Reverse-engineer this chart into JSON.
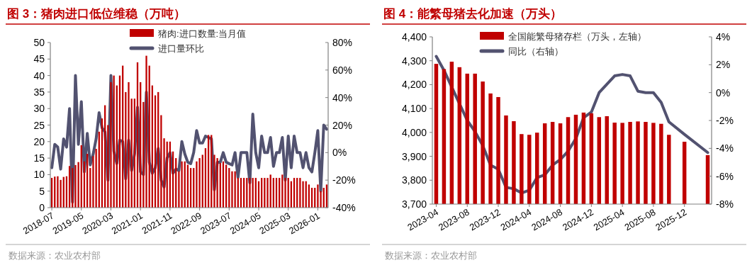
{
  "chart_data": [
    {
      "type": "bar",
      "title": "图 3：猪肉进口低位维稳（万吨）",
      "categories": [
        "2018-07",
        null,
        null,
        null,
        null,
        null,
        null,
        null,
        null,
        null,
        "2019-05",
        null,
        null,
        null,
        null,
        null,
        null,
        null,
        null,
        null,
        "2020-03",
        null,
        null,
        null,
        null,
        null,
        null,
        null,
        null,
        null,
        "2021-01",
        null,
        null,
        null,
        null,
        null,
        null,
        null,
        null,
        null,
        "2021-11",
        null,
        null,
        null,
        null,
        null,
        null,
        null,
        null,
        null,
        "2022-09",
        null,
        null,
        null,
        null,
        null,
        null,
        null,
        null,
        null,
        "2023-07",
        null,
        null,
        null,
        null,
        null,
        null,
        null,
        null,
        null,
        "2024-05",
        null,
        null,
        null,
        null,
        null,
        null,
        null,
        null,
        null,
        "2025-03",
        null,
        null,
        null,
        null,
        null,
        null,
        null,
        null,
        null,
        "2026-01",
        null,
        null,
        null
      ],
      "series": [
        {
          "name": "猪肉:进口数量:当月值",
          "type": "bar",
          "color": "#c00000",
          "values": [
            9,
            9.4,
            9.5,
            8.4,
            9.3,
            9.5,
            12.6,
            12,
            12.9,
            13.8,
            18.9,
            14,
            16.3,
            12,
            15.6,
            17.8,
            23,
            27,
            31,
            25,
            38,
            40,
            37,
            40,
            43,
            35,
            38,
            33,
            33,
            44,
            38,
            32,
            46,
            43,
            37,
            34,
            35,
            28,
            21,
            20,
            20,
            17,
            15,
            11,
            14,
            14,
            13,
            12,
            12,
            14,
            15,
            16,
            18,
            22,
            22,
            16,
            15,
            13.5,
            14,
            13,
            12,
            11,
            11,
            9,
            9,
            9,
            9,
            9,
            9,
            9,
            8,
            9,
            9,
            9,
            10,
            9,
            9,
            9,
            10,
            9,
            9,
            8,
            9,
            9,
            9,
            8,
            8,
            7,
            6,
            6,
            7,
            5,
            6,
            7
          ]
        },
        {
          "name": "进口量环比",
          "type": "line",
          "axis": "y2",
          "color": "#525270",
          "values": [
            -11,
            6,
            4,
            -12,
            10,
            4,
            32,
            -36,
            56,
            6,
            37,
            -14,
            14,
            -9,
            -1,
            10,
            29,
            18,
            15,
            -20,
            56,
            1,
            -8,
            9,
            8,
            -19,
            9,
            -13,
            -1,
            33,
            -14,
            -16,
            44,
            -7,
            -15,
            -11,
            3,
            -20,
            -25,
            -4,
            0,
            -15,
            -12,
            -13,
            8,
            -1,
            -7,
            -8,
            0,
            16,
            7,
            7,
            12,
            11,
            10,
            -27,
            -7,
            -7,
            0,
            -7,
            -8,
            -9,
            0,
            -18,
            0,
            0,
            0,
            -22,
            28,
            0,
            -11,
            12,
            0,
            0,
            11,
            -10,
            0,
            0,
            11,
            -20,
            12,
            -11,
            12,
            0,
            0,
            -11,
            0,
            -11,
            -14,
            0,
            16,
            -28,
            20,
            17
          ]
        }
      ],
      "ylim": [
        0,
        50
      ],
      "yticks": [
        0,
        5,
        10,
        15,
        20,
        25,
        30,
        35,
        40,
        45,
        50
      ],
      "y2lim": [
        -40,
        80
      ],
      "y2ticks": [
        {
          "value": -40,
          "label": "-40%"
        },
        {
          "value": -20,
          "label": "-20%"
        },
        {
          "value": 0,
          "label": "0%"
        },
        {
          "value": 20,
          "label": "20%"
        },
        {
          "value": 40,
          "label": "40%"
        },
        {
          "value": 60,
          "label": "60%"
        },
        {
          "value": 80,
          "label": "80%"
        }
      ],
      "legend": "top",
      "annotations": [
        "数据来源：农业农村部"
      ]
    },
    {
      "type": "bar",
      "title": "图 4：能繁母猪去化加速（万头）",
      "categories": [
        "2023-04",
        null,
        null,
        null,
        "2023-08",
        null,
        null,
        null,
        "2023-12",
        null,
        null,
        null,
        "2024-04",
        null,
        null,
        null,
        "2024-08",
        null,
        null,
        null,
        "2024-12",
        null,
        null,
        null,
        "2025-04",
        null,
        null,
        null,
        "2025-08",
        null,
        null,
        null,
        "2025-12",
        null,
        null,
        null
      ],
      "series": [
        {
          "name": "全国能繁母猪存栏（万头，左轴）",
          "type": "bar",
          "color": "#c00000",
          "values": [
            4287,
            4265,
            4296,
            4273,
            4246,
            4246,
            4213,
            4163,
            4148,
            4071,
            4047,
            3993,
            3990,
            3999,
            4038,
            4044,
            4038,
            4064,
            4074,
            4083,
            4080,
            4064,
            4068,
            4041,
            4040,
            4044,
            4046,
            4044,
            4040,
            4036,
            3990,
            null,
            3961,
            null,
            null,
            3905
          ]
        },
        {
          "name": "同比（右轴）",
          "type": "line",
          "axis": "y2",
          "color": "#525270",
          "values": [
            2.6,
            1.6,
            0.4,
            -0.8,
            -2.0,
            -2.8,
            -3.8,
            -5.2,
            -5.5,
            -6.8,
            -6.9,
            -7.2,
            -7.0,
            -6.1,
            -5.9,
            -5.2,
            -4.8,
            -4.2,
            -3.3,
            -1.8,
            -1.4,
            0.0,
            0.6,
            1.2,
            1.3,
            1.2,
            0.1,
            0.0,
            0.0,
            -0.7,
            -2.1,
            null,
            -3.0,
            null,
            null,
            -4.3
          ]
        }
      ],
      "ylim": [
        3700,
        4400
      ],
      "yticks": [
        {
          "value": 3700,
          "label": "3,700"
        },
        {
          "value": 3800,
          "label": "3,800"
        },
        {
          "value": 3900,
          "label": "3,900"
        },
        {
          "value": 4000,
          "label": "4,000"
        },
        {
          "value": 4100,
          "label": "4,100"
        },
        {
          "value": 4200,
          "label": "4,200"
        },
        {
          "value": 4300,
          "label": "4,300"
        },
        {
          "value": 4400,
          "label": "4,400"
        }
      ],
      "y2lim": [
        -8,
        4
      ],
      "y2ticks": [
        {
          "value": -8,
          "label": "-8%"
        },
        {
          "value": -6,
          "label": "-6%"
        },
        {
          "value": -4,
          "label": "-4%"
        },
        {
          "value": -2,
          "label": "-2%"
        },
        {
          "value": 0,
          "label": "0%"
        },
        {
          "value": 2,
          "label": "2%"
        },
        {
          "value": 4,
          "label": "4%"
        }
      ],
      "legend": "top",
      "annotations": [
        "数据来源：农业农村部"
      ]
    }
  ]
}
